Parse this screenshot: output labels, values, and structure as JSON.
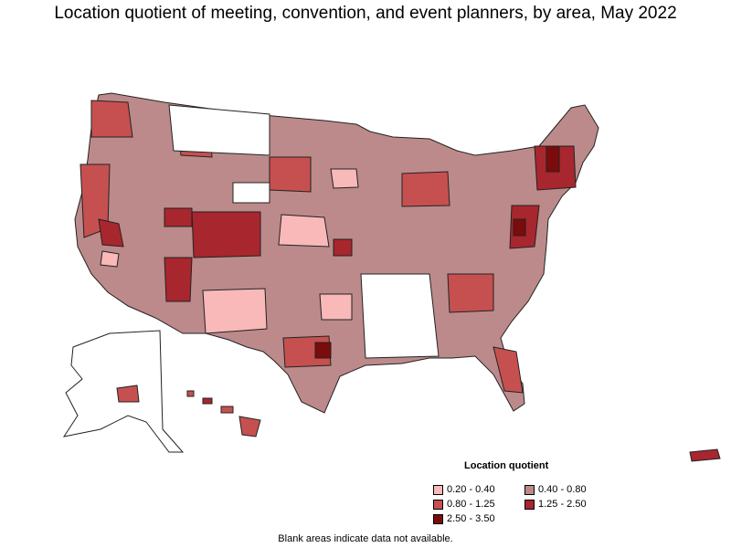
{
  "title": "Location quotient of meeting, convention, and event planners, by area, May 2022",
  "legend": {
    "title": "Location quotient",
    "items": [
      {
        "label": "0.20 - 0.40",
        "color": "#f9b9b9"
      },
      {
        "label": "0.40 - 0.80",
        "color": "#bc8a8a"
      },
      {
        "label": "0.80 - 1.25",
        "color": "#c65050"
      },
      {
        "label": "1.25 - 2.50",
        "color": "#a8262e"
      },
      {
        "label": "2.50 - 3.50",
        "color": "#7a0c0c"
      }
    ]
  },
  "footnote": "Blank areas indicate data not available.",
  "map": {
    "regions": [
      "contiguous-united-states",
      "alaska",
      "hawaii",
      "puerto-rico"
    ],
    "border_color": "#222222",
    "no_data_color": "#ffffff"
  }
}
